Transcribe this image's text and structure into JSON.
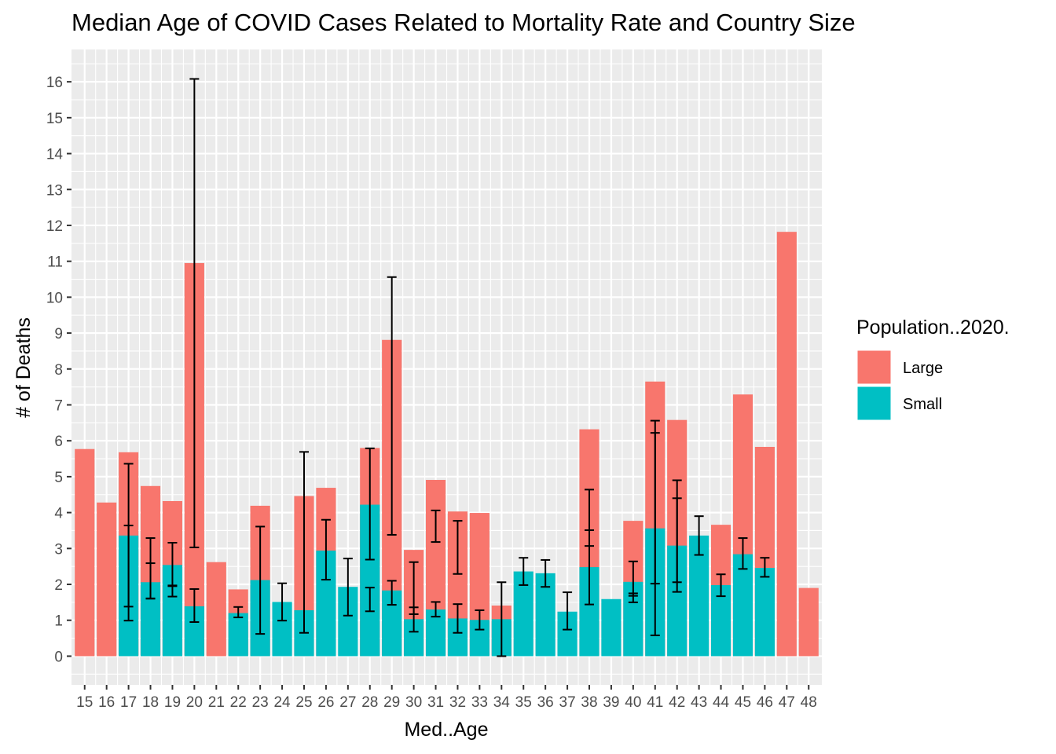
{
  "chart_data": {
    "type": "bar",
    "stacking": "overlay",
    "title": "Median Age of COVID Cases Related to Mortality Rate and Country Size",
    "xlabel": "Med..Age",
    "ylabel": "# of Deaths",
    "ylim": [
      -0.8,
      16.9
    ],
    "y_ticks": [
      0,
      1,
      2,
      3,
      4,
      5,
      6,
      7,
      8,
      9,
      10,
      11,
      12,
      13,
      14,
      15,
      16
    ],
    "grid": true,
    "legend": {
      "title": "Population..2020.",
      "placement": "right"
    },
    "colors": {
      "Large": "#F8766D",
      "Small": "#00BFC4",
      "errorbar": "#000000",
      "panel": "#EBEBEB",
      "grid": "#FFFFFF"
    },
    "categories": [
      "15",
      "16",
      "17",
      "18",
      "19",
      "20",
      "21",
      "22",
      "23",
      "24",
      "25",
      "26",
      "27",
      "28",
      "29",
      "30",
      "31",
      "32",
      "33",
      "34",
      "35",
      "36",
      "37",
      "38",
      "39",
      "40",
      "41",
      "42",
      "43",
      "44",
      "45",
      "46",
      "47",
      "48"
    ],
    "series": [
      {
        "name": "Large",
        "values": [
          5.77,
          4.28,
          5.68,
          4.74,
          4.32,
          10.95,
          2.62,
          1.86,
          4.19,
          null,
          4.46,
          4.69,
          null,
          5.8,
          8.81,
          2.96,
          4.91,
          4.03,
          3.99,
          1.41,
          null,
          null,
          null,
          6.32,
          null,
          3.77,
          7.65,
          6.58,
          null,
          3.66,
          7.29,
          5.83,
          11.82,
          1.9
        ],
        "errors": [
          null,
          null,
          [
            1.38,
            5.36
          ],
          [
            1.61,
            3.29
          ],
          [
            1.97,
            3.16
          ],
          [
            3.03,
            16.08
          ],
          null,
          null,
          [
            0.62,
            3.61
          ],
          null,
          [
            0.65,
            5.69
          ],
          [
            2.13,
            3.8
          ],
          null,
          [
            2.69,
            5.79
          ],
          [
            3.38,
            10.56
          ],
          [
            0.68,
            2.62
          ],
          [
            3.18,
            4.06
          ],
          [
            2.29,
            3.77
          ],
          null,
          null,
          null,
          null,
          null,
          [
            3.07,
            4.64
          ],
          null,
          [
            1.68,
            2.64
          ],
          [
            2.02,
            6.56
          ],
          [
            2.06,
            4.9
          ],
          null,
          null,
          [
            2.43,
            3.29
          ],
          [
            2.21,
            2.74
          ],
          null,
          null
        ]
      },
      {
        "name": "Small",
        "values": [
          null,
          null,
          3.36,
          2.06,
          2.54,
          1.39,
          null,
          1.2,
          2.12,
          1.51,
          1.28,
          2.94,
          1.93,
          4.22,
          1.83,
          1.03,
          1.3,
          1.05,
          1.01,
          1.03,
          2.36,
          2.31,
          1.24,
          2.48,
          1.59,
          2.07,
          3.56,
          3.08,
          3.36,
          1.98,
          2.84,
          2.46,
          null,
          null
        ],
        "errors": [
          null,
          null,
          [
            0.99,
            3.64
          ],
          [
            1.6,
            2.59
          ],
          [
            1.66,
            1.95
          ],
          [
            0.95,
            1.87
          ],
          null,
          [
            1.08,
            1.37
          ],
          null,
          [
            0.99,
            2.03
          ],
          null,
          null,
          [
            1.13,
            2.72
          ],
          [
            1.25,
            1.91
          ],
          [
            1.43,
            2.1
          ],
          [
            1.17,
            1.36
          ],
          [
            1.1,
            1.51
          ],
          [
            0.65,
            1.45
          ],
          [
            0.74,
            1.28
          ],
          [
            0.0,
            2.06
          ],
          [
            1.98,
            2.74
          ],
          [
            1.93,
            2.68
          ],
          [
            0.74,
            1.78
          ],
          [
            1.44,
            3.51
          ],
          null,
          [
            1.5,
            1.75
          ],
          [
            0.58,
            6.22
          ],
          [
            1.79,
            4.4
          ],
          [
            2.82,
            3.9
          ],
          [
            1.67,
            2.28
          ],
          null,
          null,
          null,
          null
        ]
      }
    ]
  }
}
